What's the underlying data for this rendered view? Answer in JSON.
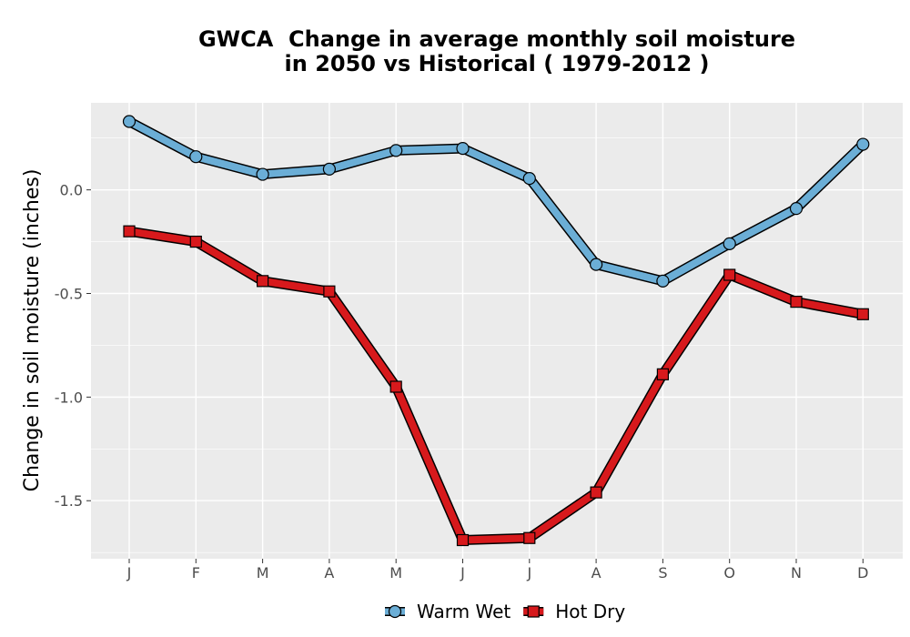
{
  "chart_data": {
    "type": "line",
    "title_lines": [
      "GWCA  Change in average monthly soil moisture",
      "in 2050 vs Historical ( 1979-2012 )"
    ],
    "xlabel": "",
    "ylabel": "Change in soil moisture (inches)",
    "categories": [
      "J",
      "F",
      "M",
      "A",
      "M",
      "J",
      "J",
      "A",
      "S",
      "O",
      "N",
      "D"
    ],
    "ylim": [
      -1.78,
      0.42
    ],
    "y_ticks": [
      0.0,
      -0.5,
      -1.0,
      -1.5
    ],
    "y_tick_labels": [
      "0.0",
      "-0.5",
      "-1.0",
      "-1.5"
    ],
    "grid": true,
    "legend_position": "bottom",
    "series": [
      {
        "name": "Warm Wet",
        "color": "#6baed6",
        "marker": "circle",
        "values": [
          0.33,
          0.16,
          0.075,
          0.1,
          0.19,
          0.2,
          0.055,
          -0.36,
          -0.44,
          -0.26,
          -0.09,
          0.22
        ]
      },
      {
        "name": "Hot Dry",
        "color": "#d7191c",
        "marker": "square",
        "values": [
          -0.2,
          -0.25,
          -0.44,
          -0.49,
          -0.95,
          -1.69,
          -1.68,
          -1.46,
          -0.89,
          -0.41,
          -0.54,
          -0.6
        ]
      }
    ]
  }
}
